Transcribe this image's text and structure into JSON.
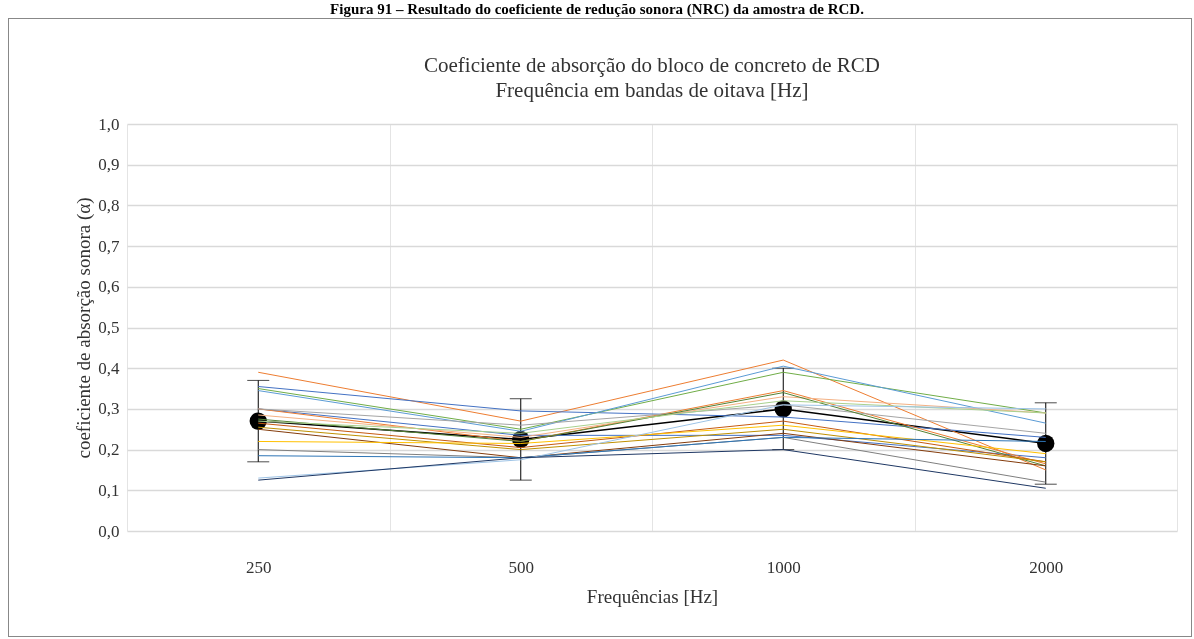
{
  "chart_data": {
    "type": "line",
    "title": "Coeficiente de absorção do bloco de concreto de RCD",
    "subtitle": "Frequência em bandas de oitava [Hz]",
    "xlabel": "Frequências [Hz]",
    "ylabel": "coeficiente de absorção sonora (α)",
    "annotations": [
      "Figura 91 – Resultado do coeficiente de redução sonora (NRC) da amostra de RCD."
    ],
    "categories": [
      "250",
      "500",
      "1000",
      "2000"
    ],
    "ylim": [
      0,
      1
    ],
    "yticks": [
      {
        "value": 0,
        "label": "0,0"
      },
      {
        "value": 0.1,
        "label": "0,1"
      },
      {
        "value": 0.2,
        "label": "0,2"
      },
      {
        "value": 0.3,
        "label": "0,3"
      },
      {
        "value": 0.4,
        "label": "0,4"
      },
      {
        "value": 0.5,
        "label": "0,5"
      },
      {
        "value": 0.6,
        "label": "0,6"
      },
      {
        "value": 0.7,
        "label": "0,7"
      },
      {
        "value": 0.8,
        "label": "0,8"
      },
      {
        "value": 0.9,
        "label": "0,9"
      },
      {
        "value": 1,
        "label": "1,0"
      }
    ],
    "grid": true,
    "line_style": "solid",
    "series": [
      {
        "color": "#ed7d31",
        "values": [
          0.39,
          0.27,
          0.42,
          0.15
        ],
        "marker": "none"
      },
      {
        "color": "#4472c4",
        "values": [
          0.355,
          0.295,
          0.28,
          0.23
        ],
        "marker": "none"
      },
      {
        "color": "#70ad47",
        "values": [
          0.35,
          0.25,
          0.39,
          0.29
        ],
        "marker": "none"
      },
      {
        "color": "#5b9bd5",
        "values": [
          0.345,
          0.245,
          0.405,
          0.265
        ],
        "marker": "none"
      },
      {
        "color": "#4472c4",
        "values": [
          0.3,
          0.235,
          0.235,
          0.18
        ],
        "marker": "none"
      },
      {
        "color": "#ed7d31",
        "values": [
          0.3,
          0.22,
          0.345,
          0.165
        ],
        "marker": "none"
      },
      {
        "color": "#a5a5a5",
        "values": [
          0.3,
          0.26,
          0.31,
          0.24
        ],
        "marker": "none"
      },
      {
        "color": "#f4b183",
        "values": [
          0.285,
          0.23,
          0.33,
          0.29
        ],
        "marker": "none"
      },
      {
        "color": "#548235",
        "values": [
          0.275,
          0.22,
          0.34,
          0.16
        ],
        "marker": "none"
      },
      {
        "color": "#a9d18e",
        "values": [
          0.27,
          0.24,
          0.32,
          0.29
        ],
        "marker": "none"
      },
      {
        "color": "#c55a11",
        "values": [
          0.265,
          0.205,
          0.27,
          0.17
        ],
        "marker": "none"
      },
      {
        "color": "#bf9000",
        "values": [
          0.255,
          0.2,
          0.25,
          0.17
        ],
        "marker": "none"
      },
      {
        "color": "#843c0c",
        "values": [
          0.25,
          0.18,
          0.24,
          0.16
        ],
        "marker": "none"
      },
      {
        "color": "#ffc000",
        "values": [
          0.22,
          0.215,
          0.26,
          0.19
        ],
        "marker": "none"
      },
      {
        "color": "#7f7f7f",
        "values": [
          0.2,
          0.18,
          0.23,
          0.12
        ],
        "marker": "none"
      },
      {
        "color": "#2e75b6",
        "values": [
          0.185,
          0.18,
          0.23,
          0.22
        ],
        "marker": "none"
      },
      {
        "color": "#9dc3e6",
        "values": [
          0.13,
          0.175,
          0.31,
          0.3
        ],
        "marker": "none"
      },
      {
        "color": "#1f3864",
        "values": [
          0.125,
          0.18,
          0.2,
          0.105
        ],
        "marker": "none"
      },
      {
        "color": "#000000",
        "values": [
          0.27,
          0.225,
          0.3,
          0.215
        ],
        "marker": "circle",
        "errors": [
          0.1,
          0.1,
          0.1,
          0.1
        ]
      }
    ]
  }
}
